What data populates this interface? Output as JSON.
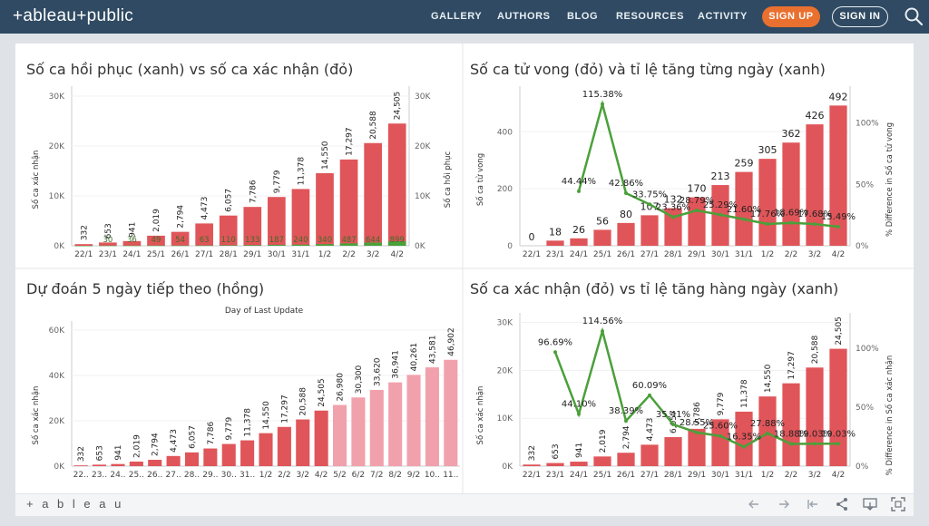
{
  "header": {
    "logo": "+ableau+public",
    "nav": [
      "GALLERY",
      "AUTHORS",
      "BLOG",
      "RESOURCES",
      "ACTIVITY"
    ],
    "signup": "SIGN UP",
    "signin": "SIGN IN",
    "search_icon": "search-icon"
  },
  "footer": {
    "logo": "+ a b l e a u"
  },
  "colors": {
    "red": "#e05559",
    "green": "#4aa03a",
    "pink": "#f1a1ac",
    "header": "#2f4a62",
    "orange": "#e9702f"
  },
  "chart_data": [
    {
      "type": "bar",
      "title": "Số ca hồi phục (xanh) vs số ca xác nhận (đỏ)",
      "categories": [
        "22/1",
        "23/1",
        "24/1",
        "25/1",
        "26/1",
        "27/1",
        "28/1",
        "29/1",
        "30/1",
        "31/1",
        "1/2",
        "2/2",
        "3/2",
        "4/2"
      ],
      "ylabel": "Số ca xác nhận",
      "y2label": "Số ca hồi phục",
      "ylim": [
        0,
        32000
      ],
      "yticks": [
        "0K",
        "10K",
        "20K",
        "30K"
      ],
      "y2ticks": [
        "0K",
        "10K",
        "20K",
        "30K"
      ],
      "series": [
        {
          "name": "Số ca xác nhận",
          "values": [
            332,
            653,
            941,
            2019,
            2794,
            4473,
            6057,
            7786,
            9779,
            11378,
            14550,
            17297,
            20588,
            24505
          ],
          "labels": [
            "332",
            "653",
            "941",
            "2,019",
            "2,794",
            "4,473",
            "6,057",
            "7,786",
            "9,779",
            "11,378",
            "14,550",
            "17,297",
            "20,588",
            "24,505"
          ]
        },
        {
          "name": "Số ca hồi phục",
          "values": [
            0,
            30,
            36,
            49,
            54,
            63,
            110,
            133,
            187,
            240,
            340,
            487,
            644,
            899
          ],
          "labels": [
            "",
            "30",
            "36",
            "49",
            "54",
            "63",
            "110",
            "133",
            "187",
            "240",
            "340",
            "487",
            "644",
            "899"
          ]
        }
      ]
    },
    {
      "type": "bar",
      "title": "Số ca tử vong (đỏ) và tỉ lệ tăng từng ngày (xanh)",
      "categories": [
        "22/1",
        "23/1",
        "24/1",
        "25/1",
        "26/1",
        "27/1",
        "28/1",
        "29/1",
        "30/1",
        "31/1",
        "1/2",
        "2/2",
        "3/2",
        "4/2"
      ],
      "ylabel": "Số ca tử vong",
      "y2label": "% Difference in Số ca tử vong",
      "ylim": [
        0,
        560
      ],
      "yticks": [
        "0",
        "200",
        "400"
      ],
      "y2ticks": [
        "0%",
        "50%",
        "100%"
      ],
      "series": [
        {
          "name": "Số ca tử vong",
          "values": [
            0,
            18,
            26,
            56,
            80,
            107,
            132,
            170,
            213,
            259,
            305,
            362,
            426,
            492
          ],
          "labels": [
            "0",
            "18",
            "26",
            "56",
            "80",
            "107",
            "132",
            "170",
            "213",
            "259",
            "305",
            "362",
            "426",
            "492"
          ]
        },
        {
          "name": "% Difference in Số ca tử vong",
          "values": [
            null,
            null,
            44.44,
            115.38,
            42.86,
            33.75,
            23.36,
            28.79,
            25.29,
            21.6,
            17.76,
            18.69,
            17.68,
            15.49
          ],
          "labels": [
            "",
            "",
            "44.44%",
            "115.38%",
            "42.86%",
            "33.75%",
            "23.36%",
            "28.79%",
            "25.29%",
            "21.60%",
            "17.76%",
            "18.69%",
            "17.68%",
            "15.49%"
          ]
        }
      ]
    },
    {
      "type": "bar",
      "title": "Dự đoán 5 ngày tiếp theo (hồng)",
      "subtitle": "Day of Last Update",
      "categories": [
        "22..",
        "23..",
        "24..",
        "25..",
        "26..",
        "27..",
        "28..",
        "29..",
        "30..",
        "31..",
        "1/2",
        "2/2",
        "3/2",
        "4/2",
        "5/2",
        "6/2",
        "7/2",
        "8/2",
        "9/2",
        "10..",
        "11.."
      ],
      "ylabel": "Số ca xác nhận",
      "ylim": [
        0,
        64000
      ],
      "yticks": [
        "0K",
        "20K",
        "40K",
        "60K"
      ],
      "series": [
        {
          "name": "Số ca xác nhận",
          "values": [
            332,
            653,
            941,
            2019,
            2794,
            4473,
            6057,
            7786,
            9779,
            11378,
            14550,
            17297,
            20588,
            24505,
            26980,
            30300,
            33620,
            36941,
            40261,
            43581,
            46902
          ],
          "labels": [
            "332",
            "653",
            "941",
            "2,019",
            "2,794",
            "4,473",
            "6,057",
            "7,786",
            "9,779",
            "11,378",
            "14,550",
            "17,297",
            "20,588",
            "24,505",
            "26,980",
            "30,300",
            "33,620",
            "36,941",
            "40,261",
            "43,581",
            "46,902"
          ],
          "forecast_from_index": 14
        }
      ]
    },
    {
      "type": "bar",
      "title": "Số ca xác nhận (đỏ) vs tỉ lệ tăng hàng ngày (xanh)",
      "categories": [
        "22/1",
        "23/1",
        "24/1",
        "25/1",
        "26/1",
        "27/1",
        "28/1",
        "29/1",
        "30/1",
        "31/1",
        "1/2",
        "2/2",
        "3/2",
        "4/2"
      ],
      "ylabel": "Số ca xác nhận",
      "y2label": "% Difference in Số ca xác nhận",
      "ylim": [
        0,
        32000
      ],
      "yticks": [
        "0K",
        "10K",
        "20K",
        "30K"
      ],
      "y2ticks": [
        "0%",
        "50%",
        "100%"
      ],
      "series": [
        {
          "name": "Số ca xác nhận",
          "values": [
            332,
            653,
            941,
            2019,
            2794,
            4473,
            6057,
            7786,
            9779,
            11378,
            14550,
            17297,
            20588,
            24505
          ],
          "labels": [
            "332",
            "653",
            "941",
            "2,019",
            "2,794",
            "4,473",
            "6,057",
            "7,786",
            "9,779",
            "11,378",
            "14,550",
            "17,297",
            "20,588",
            "24,505"
          ]
        },
        {
          "name": "% Difference in Số ca xác nhận",
          "values": [
            null,
            96.69,
            44.1,
            114.56,
            38.39,
            60.09,
            35.41,
            28.55,
            25.6,
            16.35,
            27.88,
            18.88,
            19.03,
            19.03
          ],
          "labels": [
            "",
            "96.69%",
            "44.10%",
            "114.56%",
            "38.39%",
            "60.09%",
            "35.41%",
            "28.55%",
            "25.60%",
            "16.35%",
            "27.88%",
            "18.88%",
            "19.03%",
            "19.03%"
          ]
        }
      ]
    }
  ]
}
